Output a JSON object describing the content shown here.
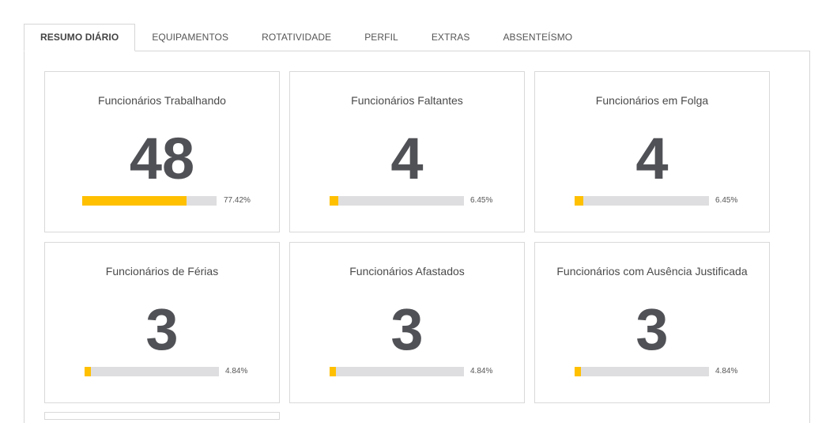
{
  "tabs": [
    {
      "label": "RESUMO DIÁRIO",
      "active": true
    },
    {
      "label": "EQUIPAMENTOS",
      "active": false
    },
    {
      "label": "ROTATIVIDADE",
      "active": false
    },
    {
      "label": "PERFIL",
      "active": false
    },
    {
      "label": "EXTRAS",
      "active": false
    },
    {
      "label": "ABSENTEÍSMO",
      "active": false
    }
  ],
  "cards": [
    {
      "title": "Funcionários Trabalhando",
      "value": "48",
      "percent_label": "77.42%",
      "percent": 77.42
    },
    {
      "title": "Funcionários Faltantes",
      "value": "4",
      "percent_label": "6.45%",
      "percent": 6.45
    },
    {
      "title": "Funcionários em Folga",
      "value": "4",
      "percent_label": "6.45%",
      "percent": 6.45
    },
    {
      "title": "Funcionários de Férias",
      "value": "3",
      "percent_label": "4.84%",
      "percent": 4.84
    },
    {
      "title": "Funcionários Afastados",
      "value": "3",
      "percent_label": "4.84%",
      "percent": 4.84
    },
    {
      "title": "Funcionários com Ausência Justificada",
      "value": "3",
      "percent_label": "4.84%",
      "percent": 4.84
    }
  ],
  "colors": {
    "bar_fill": "#ffc000",
    "bar_track": "#dedee0",
    "value_text": "#505156"
  }
}
